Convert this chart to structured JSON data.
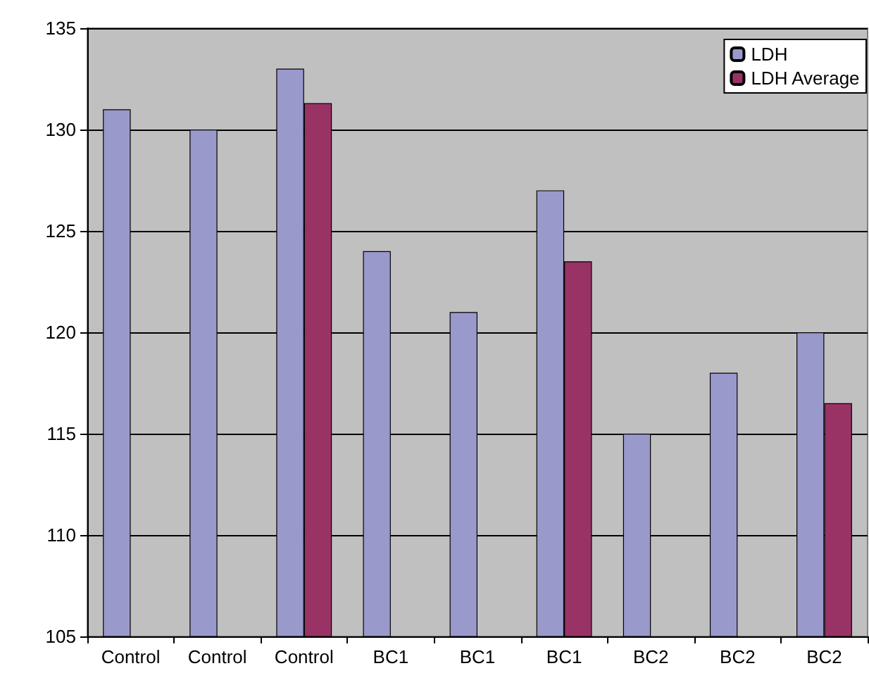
{
  "chart_data": {
    "type": "bar",
    "categories": [
      "Control",
      "Control",
      "Control",
      "BC1",
      "BC1",
      "BC1",
      "BC2",
      "BC2",
      "BC2"
    ],
    "series": [
      {
        "name": "LDH",
        "color": "#9999cc",
        "values": [
          131,
          130,
          133,
          124,
          121,
          127,
          115,
          118,
          120
        ]
      },
      {
        "name": "LDH Average",
        "color": "#993366",
        "values": [
          null,
          null,
          131.3,
          null,
          null,
          123.5,
          null,
          null,
          116.5
        ]
      }
    ],
    "ylim": [
      105,
      135
    ],
    "yticks": [
      105,
      110,
      115,
      120,
      125,
      130,
      135
    ],
    "grid": "y",
    "legend": "top right"
  }
}
